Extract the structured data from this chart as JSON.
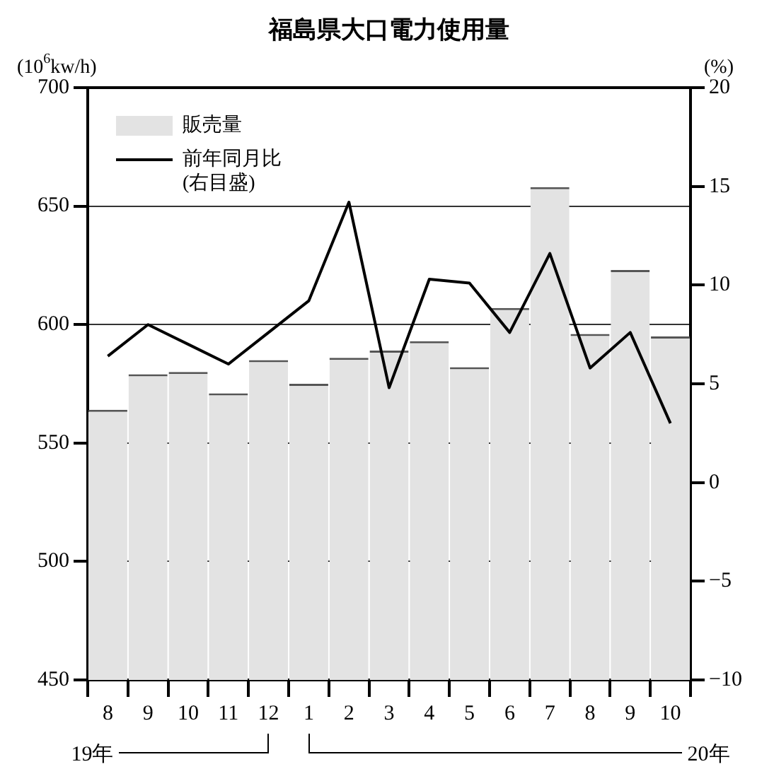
{
  "chart_data": {
    "type": "bar",
    "title": "福島県大口電力使用量",
    "ylabel": "(10$^{6}$kw/h)",
    "y2label": "(%)",
    "categories": [
      "8",
      "9",
      "10",
      "11",
      "12",
      "1",
      "2",
      "3",
      "4",
      "5",
      "6",
      "7",
      "8",
      "9",
      "10"
    ],
    "series": [
      {
        "name": "販売量",
        "color": "#e3e3e3",
        "values": [
          564,
          579,
          580,
          571,
          585,
          575,
          586,
          589,
          593,
          582,
          607,
          658,
          596,
          623,
          595
        ]
      },
      {
        "name": "前年同月比\n(右目盛)",
        "type": "line",
        "axis": "y2",
        "color": "#000000",
        "values": [
          6.4,
          8.0,
          7.0,
          6.0,
          7.6,
          9.2,
          14.2,
          4.8,
          10.3,
          10.1,
          7.6,
          11.6,
          5.8,
          7.6,
          3.0
        ]
      }
    ],
    "ylim": [
      450,
      700
    ],
    "yticks": [
      450,
      500,
      550,
      600,
      650,
      700
    ],
    "y2lim": [
      -10,
      20
    ],
    "y2ticks": [
      {
        "value": -10,
        "label": "−10"
      },
      {
        "value": -5,
        "label": "−5"
      },
      0,
      5,
      10,
      15,
      20
    ],
    "grid": "y",
    "legend": "top left",
    "marker": "none",
    "annotations": [
      "19年",
      "20年"
    ]
  }
}
